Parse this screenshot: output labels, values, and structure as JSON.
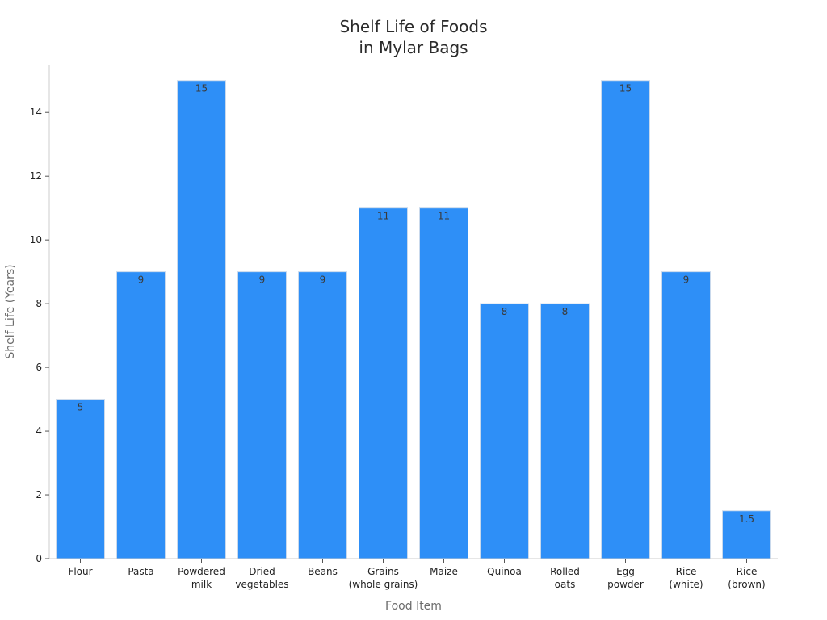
{
  "chart_data": {
    "type": "bar",
    "title_lines": [
      "Shelf Life of Foods",
      "in Mylar Bags"
    ],
    "xlabel": "Food Item",
    "ylabel": "Shelf Life (Years)",
    "ylim": [
      0,
      15.5
    ],
    "yticks": [
      0,
      2,
      4,
      6,
      8,
      10,
      12,
      14
    ],
    "categories": [
      [
        "Flour"
      ],
      [
        "Pasta"
      ],
      [
        "Powdered",
        "milk"
      ],
      [
        "Dried",
        "vegetables"
      ],
      [
        "Beans"
      ],
      [
        "Grains",
        "(whole grains)"
      ],
      [
        "Maize"
      ],
      [
        "Quinoa"
      ],
      [
        "Rolled",
        "oats"
      ],
      [
        "Egg",
        "powder"
      ],
      [
        "Rice",
        "(white)"
      ],
      [
        "Rice",
        "(brown)"
      ]
    ],
    "values": [
      5,
      9,
      15,
      9,
      9,
      11,
      11,
      8,
      8,
      15,
      9,
      1.5
    ],
    "value_labels": [
      "5",
      "9",
      "15",
      "9",
      "9",
      "11",
      "11",
      "8",
      "8",
      "15",
      "9",
      "1.5"
    ],
    "bar_color": "#2e8ff7",
    "bar_edge_color": "#c9d9ec",
    "grid": false,
    "legend": "none"
  }
}
